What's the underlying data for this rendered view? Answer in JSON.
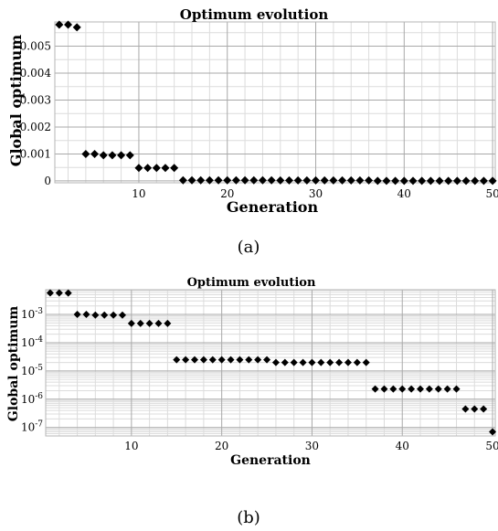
{
  "chart_data": [
    {
      "panel": "a",
      "type": "scatter",
      "title": "Optimum evolution",
      "xlabel": "Generation",
      "ylabel": "Global optimum",
      "xlim": [
        0.5,
        50.3
      ],
      "ylim": [
        -7e-05,
        0.0059
      ],
      "xscale": "linear",
      "yscale": "linear",
      "x_ticks": [
        10,
        20,
        30,
        40,
        50
      ],
      "x_tick_labels": [
        "10",
        "20",
        "30",
        "40",
        "50"
      ],
      "y_ticks": [
        0,
        0.001,
        0.002,
        0.003,
        0.004,
        0.005
      ],
      "y_tick_labels": [
        "0",
        "0.001",
        "0.002",
        "0.003",
        "0.004",
        "0.005"
      ],
      "grid": true,
      "marker": "diamond",
      "caption": "(a)",
      "x": [
        1,
        2,
        3,
        4,
        5,
        6,
        7,
        8,
        9,
        10,
        11,
        12,
        13,
        14,
        15,
        16,
        17,
        18,
        19,
        20,
        21,
        22,
        23,
        24,
        25,
        26,
        27,
        28,
        29,
        30,
        31,
        32,
        33,
        34,
        35,
        36,
        37,
        38,
        39,
        40,
        41,
        42,
        43,
        44,
        45,
        46,
        47,
        48,
        49,
        50
      ],
      "y": [
        0.0058,
        0.0058,
        0.0057,
        0.001,
        0.001,
        0.00095,
        0.00095,
        0.00095,
        0.00095,
        0.00048,
        0.00048,
        0.00048,
        0.00048,
        0.00048,
        2.5e-05,
        2.5e-05,
        2.5e-05,
        2.5e-05,
        2.5e-05,
        2.5e-05,
        2.5e-05,
        2.5e-05,
        2.5e-05,
        2.5e-05,
        2.5e-05,
        2e-05,
        2e-05,
        2e-05,
        2e-05,
        2e-05,
        2e-05,
        2e-05,
        2e-05,
        2e-05,
        2e-05,
        2e-05,
        2.3e-06,
        2.3e-06,
        2.3e-06,
        2.3e-06,
        2.3e-06,
        2.3e-06,
        2.3e-06,
        2.3e-06,
        2.3e-06,
        2.3e-06,
        4.5e-07,
        4.5e-07,
        4.5e-07,
        7e-08
      ]
    },
    {
      "panel": "b",
      "type": "scatter",
      "title": "Optimum evolution",
      "xlabel": "Generation",
      "ylabel": "Global optimum",
      "xlim": [
        0.5,
        50.3
      ],
      "ylim": [
        5e-08,
        0.0075
      ],
      "xscale": "linear",
      "yscale": "log",
      "x_ticks": [
        10,
        20,
        30,
        40,
        50
      ],
      "x_tick_labels": [
        "10",
        "20",
        "30",
        "40",
        "50"
      ],
      "y_ticks": [
        1e-07,
        1e-06,
        1e-05,
        0.0001,
        0.001
      ],
      "y_tick_mantissa": [
        "10",
        "10",
        "10",
        "10",
        "10"
      ],
      "y_tick_exponents": [
        "-7",
        "-6",
        "-5",
        "-4",
        "-3"
      ],
      "grid": true,
      "marker": "diamond",
      "caption": "(b)",
      "x": [
        1,
        2,
        3,
        4,
        5,
        6,
        7,
        8,
        9,
        10,
        11,
        12,
        13,
        14,
        15,
        16,
        17,
        18,
        19,
        20,
        21,
        22,
        23,
        24,
        25,
        26,
        27,
        28,
        29,
        30,
        31,
        32,
        33,
        34,
        35,
        36,
        37,
        38,
        39,
        40,
        41,
        42,
        43,
        44,
        45,
        46,
        47,
        48,
        49,
        50
      ],
      "y": [
        0.0058,
        0.0058,
        0.0057,
        0.001,
        0.001,
        0.00095,
        0.00095,
        0.00095,
        0.00095,
        0.00048,
        0.00048,
        0.00048,
        0.00048,
        0.00048,
        2.5e-05,
        2.5e-05,
        2.5e-05,
        2.5e-05,
        2.5e-05,
        2.5e-05,
        2.5e-05,
        2.5e-05,
        2.5e-05,
        2.5e-05,
        2.5e-05,
        2e-05,
        2e-05,
        2e-05,
        2e-05,
        2e-05,
        2e-05,
        2e-05,
        2e-05,
        2e-05,
        2e-05,
        2e-05,
        2.3e-06,
        2.3e-06,
        2.3e-06,
        2.3e-06,
        2.3e-06,
        2.3e-06,
        2.3e-06,
        2.3e-06,
        2.3e-06,
        2.3e-06,
        4.5e-07,
        4.5e-07,
        4.5e-07,
        7e-08
      ]
    }
  ]
}
